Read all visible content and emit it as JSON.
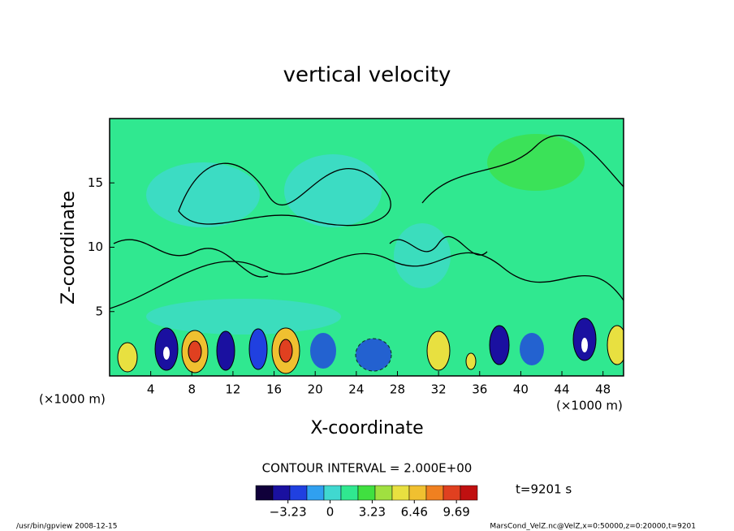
{
  "chart_data": {
    "type": "contour",
    "title": "vertical velocity",
    "x_label": "X-coordinate",
    "y_label": "Z-coordinate",
    "x_unit_left": "(×1000 m)",
    "x_unit_right": "(×1000 m)",
    "xlim": [
      0,
      50
    ],
    "xticks": [
      4,
      8,
      12,
      16,
      20,
      24,
      28,
      32,
      36,
      40,
      44,
      48
    ],
    "ylim": [
      0,
      20
    ],
    "yticks": [
      5,
      10,
      15
    ],
    "contour_interval": "CONTOUR INTERVAL = 2.000E+00",
    "time_label": "t=9201 s",
    "colorbar": {
      "lim": [
        -5.7,
        11.3
      ],
      "ticks": [
        {
          "value": -3.23,
          "label": "−3.23"
        },
        0,
        3.23,
        6.46,
        9.69
      ],
      "colormap": [
        "#10003a",
        "#1a10a0",
        "#2040e0",
        "#30a0f0",
        "#40d8d0",
        "#30e890",
        "#40e040",
        "#a0e040",
        "#e8e040",
        "#f0c030",
        "#f08020",
        "#e04020",
        "#c01010"
      ]
    },
    "footer_left": "/usr/bin/gpview  2008-12-15",
    "footer_right": "MarsCond_VelZ.nc@VelZ,x=0:50000,z=0:20000,t=9201"
  }
}
